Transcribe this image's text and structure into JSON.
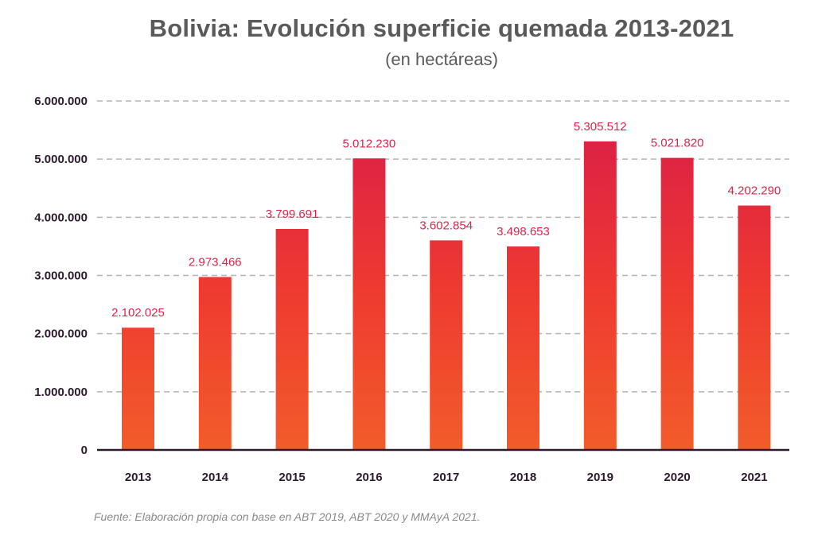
{
  "chart_data": {
    "type": "bar",
    "title": "Bolivia: Evolución superficie quemada 2013-2021",
    "subtitle": "(en hectáreas)",
    "xlabel": "",
    "ylabel": "",
    "categories": [
      "2013",
      "2014",
      "2015",
      "2016",
      "2017",
      "2018",
      "2019",
      "2020",
      "2021"
    ],
    "values": [
      2102025,
      2973466,
      3799691,
      5012230,
      3602854,
      3498653,
      5305512,
      5021820,
      4202290
    ],
    "data_labels": [
      "2.102.025",
      "2.973.466",
      "3.799.691",
      "5.012.230",
      "3.602.854",
      "3.498.653",
      "5.305.512",
      "5.021.820",
      "4.202.290"
    ],
    "ylim": [
      0,
      6000000
    ],
    "yticks": [
      0,
      1000000,
      2000000,
      3000000,
      4000000,
      5000000,
      6000000
    ],
    "ytick_labels": [
      "0",
      "1.000.000",
      "2.000.000",
      "3.000.000",
      "4.000.000",
      "5.000.000",
      "6.000.000"
    ],
    "grid": true,
    "legend": "none",
    "source": "Fuente: Elaboración propia con base en ABT 2019, ABT 2020 y MMAyA 2021."
  },
  "colors": {
    "bar_top": "#d81b4a",
    "bar_bottom": "#f25c2a",
    "data_label": "#e0244a",
    "axis": "#2d1a2e",
    "grid": "#b8b2b8",
    "title": "#5a5a5a"
  }
}
